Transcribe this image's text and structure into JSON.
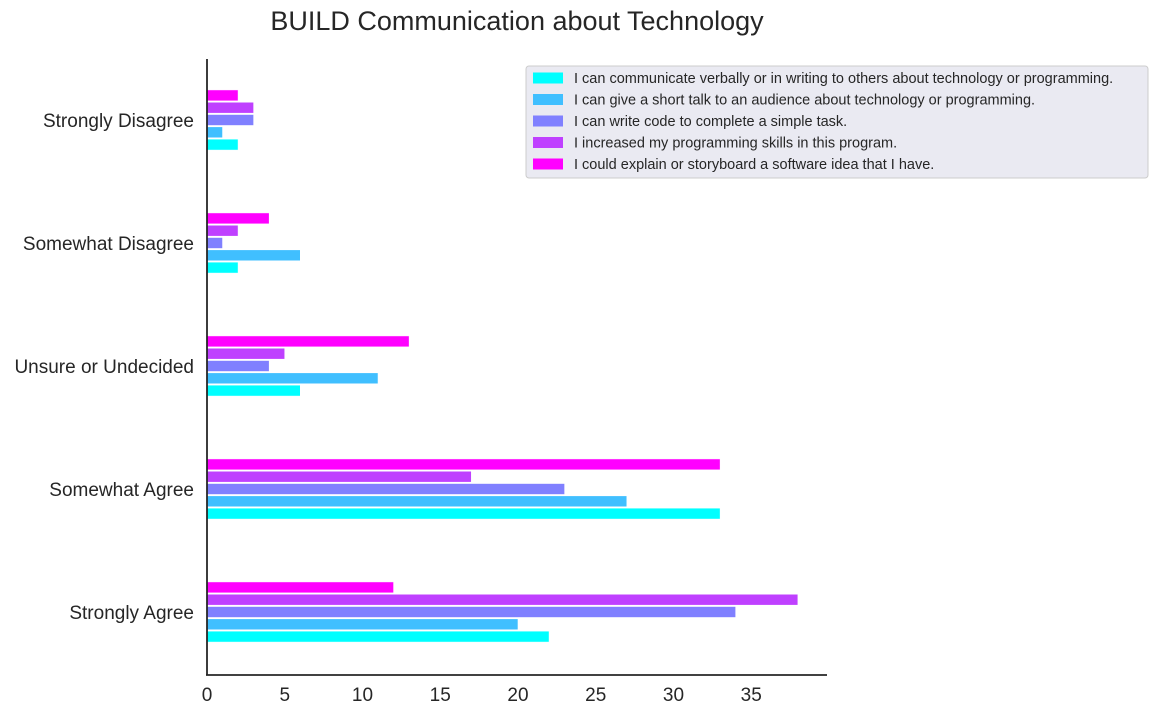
{
  "chart_data": {
    "type": "bar",
    "orientation": "horizontal",
    "title": "BUILD Communication about Technology",
    "xlabel": "",
    "ylabel": "",
    "categories": [
      "Strongly Agree",
      "Somewhat Agree",
      "Unsure or Undecided",
      "Somewhat Disagree",
      "Strongly Disagree"
    ],
    "xlim": [
      0,
      40
    ],
    "xticks": [
      0,
      5,
      10,
      15,
      20,
      25,
      30,
      35
    ],
    "grid": false,
    "legend_position": "top-right",
    "series": [
      {
        "name": "I can communicate verbally or in writing to others about technology or programming.",
        "color": "#00ffff",
        "values": [
          22,
          33,
          6,
          2,
          2
        ]
      },
      {
        "name": "I can give a short talk to an audience about technology or programming.",
        "color": "#40bfff",
        "values": [
          20,
          27,
          11,
          6,
          1
        ]
      },
      {
        "name": "I can write code to complete a simple task.",
        "color": "#8080ff",
        "values": [
          34,
          23,
          4,
          1,
          3
        ]
      },
      {
        "name": "I increased my programming skills in this program.",
        "color": "#bf40ff",
        "values": [
          38,
          17,
          5,
          2,
          3
        ]
      },
      {
        "name": "I could explain or storyboard a software idea that I have.",
        "color": "#ff00ff",
        "values": [
          12,
          33,
          13,
          4,
          2
        ]
      }
    ]
  }
}
